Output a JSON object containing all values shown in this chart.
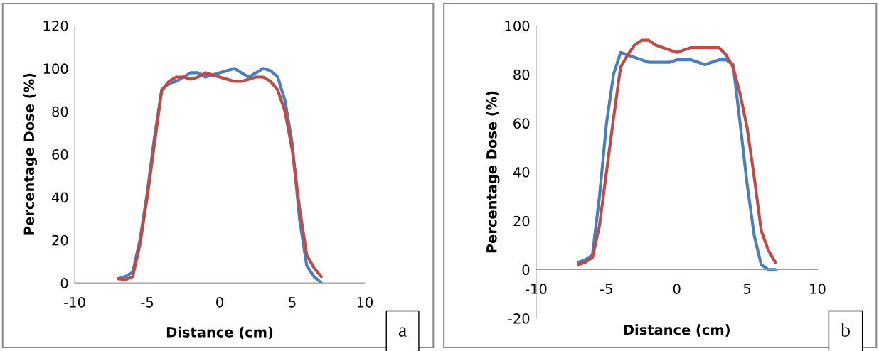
{
  "chart_data": [
    {
      "type": "line",
      "xlabel": "Distance (cm)",
      "ylabel": "Percentage Dose (%)",
      "annotations": [
        "a"
      ],
      "x": [
        -7,
        -6.5,
        -6,
        -5.5,
        -5,
        -4.5,
        -4,
        -3.5,
        -3,
        -2.5,
        -2,
        -1.5,
        -1,
        -0.5,
        0,
        0.5,
        1,
        1.5,
        2,
        2.5,
        3,
        3.5,
        4,
        4.5,
        5,
        5.5,
        6,
        6.5,
        7
      ],
      "series": [
        {
          "color": "#4a7ebb",
          "values": [
            2,
            3,
            5,
            20,
            42,
            68,
            90,
            93,
            94,
            96,
            98,
            98,
            96,
            97,
            98,
            99,
            100,
            98,
            96,
            98,
            100,
            99,
            96,
            85,
            65,
            30,
            8,
            3,
            0
          ]
        },
        {
          "color": "#be4b48",
          "values": [
            2,
            1.5,
            3,
            18,
            40,
            65,
            90,
            94,
            96,
            96,
            95,
            96,
            98,
            97,
            96,
            95,
            94,
            94,
            95,
            96,
            96,
            94,
            90,
            80,
            62,
            35,
            13,
            7,
            3
          ]
        }
      ],
      "xlim": [
        -10,
        10
      ],
      "xticks": [
        -10,
        -5,
        0,
        5,
        10
      ],
      "ylim": [
        0,
        120
      ],
      "yticks": [
        0,
        20,
        40,
        60,
        80,
        100,
        120
      ],
      "grid": false,
      "legend": false
    },
    {
      "type": "line",
      "xlabel": "Distance (cm)",
      "ylabel": "Percentage Dose (%)",
      "annotations": [
        "b"
      ],
      "x": [
        -7,
        -6.5,
        -6,
        -5.5,
        -5,
        -4.5,
        -4,
        -3.5,
        -3,
        -2.5,
        -2,
        -1.5,
        -1,
        -0.5,
        0,
        0.5,
        1,
        1.5,
        2,
        2.5,
        3,
        3.5,
        4,
        4.5,
        5,
        5.5,
        6,
        6.5,
        7
      ],
      "series": [
        {
          "color": "#4a7ebb",
          "values": [
            3,
            4,
            6,
            30,
            60,
            80,
            89,
            88,
            87,
            86,
            85,
            85,
            85,
            85,
            86,
            86,
            86,
            85,
            84,
            85,
            86,
            86,
            84,
            60,
            35,
            14,
            2,
            0,
            0
          ]
        },
        {
          "color": "#be4b48",
          "values": [
            2,
            3,
            5,
            18,
            40,
            62,
            83,
            88,
            92,
            94,
            94,
            92,
            91,
            90,
            89,
            90,
            91,
            91,
            91,
            91,
            91,
            88,
            83,
            72,
            58,
            38,
            16,
            8,
            3
          ]
        }
      ],
      "xlim": [
        -10,
        10
      ],
      "xticks": [
        -10,
        -5,
        0,
        5,
        10
      ],
      "ylim": [
        -20,
        100
      ],
      "yticks": [
        -20,
        0,
        20,
        40,
        60,
        80,
        100
      ],
      "grid": false,
      "legend": false
    }
  ]
}
